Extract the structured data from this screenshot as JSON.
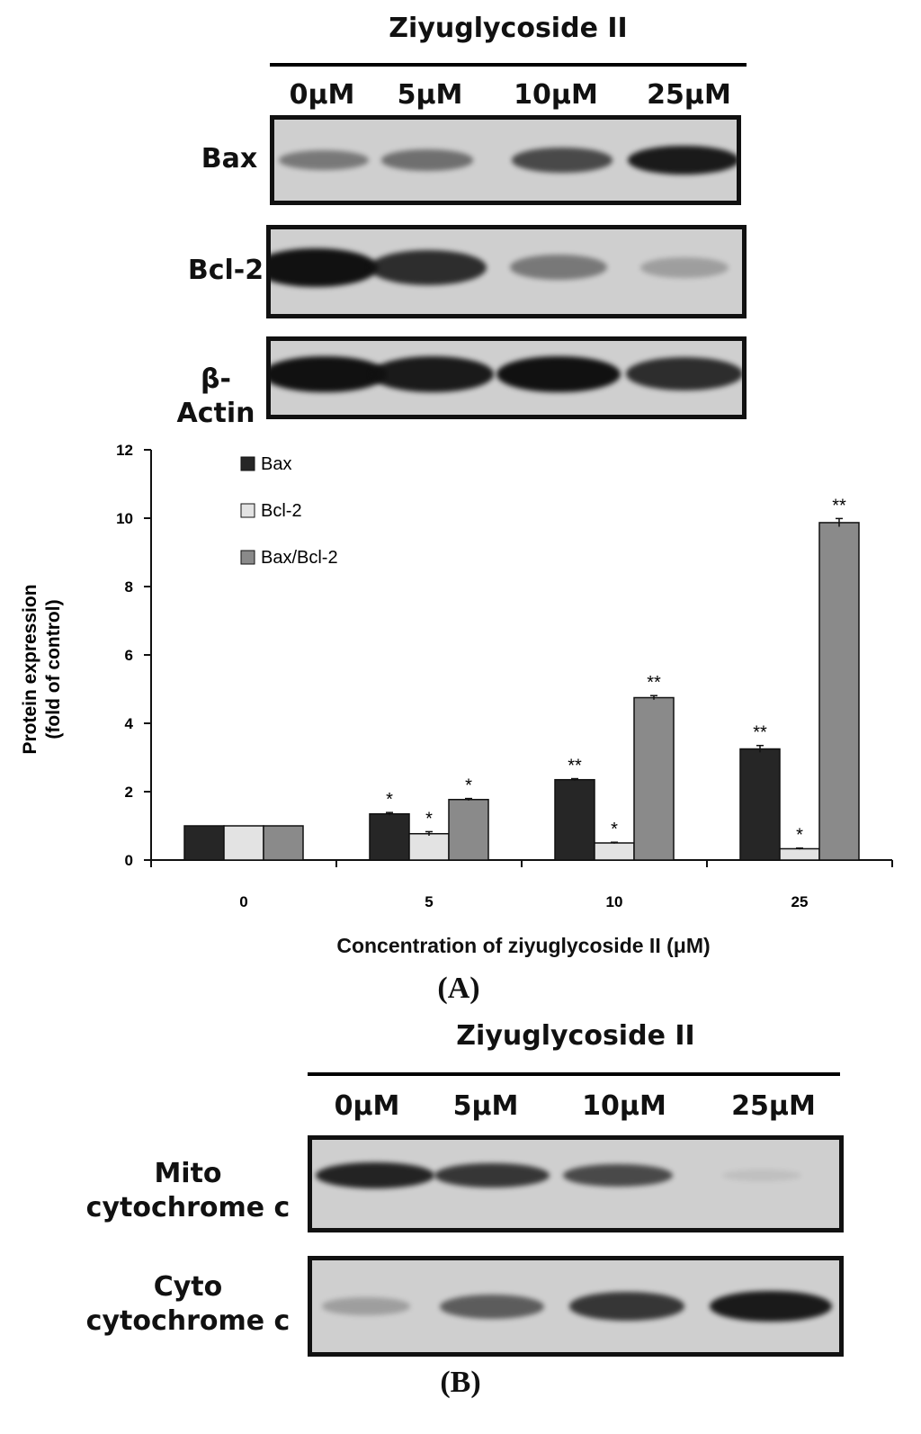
{
  "panel_a": {
    "label": "(A)",
    "treatment_title": "Ziyuglycoside II",
    "lanes": [
      "0μM",
      "5μM",
      "10μM",
      "25μM"
    ],
    "blots": [
      {
        "name": "Bax",
        "band_intensity": [
          0.45,
          0.5,
          0.7,
          0.95
        ]
      },
      {
        "name": "Bcl-2",
        "band_intensity": [
          1.0,
          0.85,
          0.45,
          0.25
        ]
      },
      {
        "name": "β-Actin",
        "band_intensity": [
          1.0,
          0.95,
          1.0,
          0.85
        ]
      }
    ]
  },
  "panel_b": {
    "label": "(B)",
    "treatment_title": "Ziyuglycoside II",
    "lanes": [
      "0μM",
      "5μM",
      "10μM",
      "25μM"
    ],
    "blots": [
      {
        "name_line1": "Mito",
        "name_line2": "cytochrome c",
        "band_intensity": [
          0.9,
          0.8,
          0.7,
          0.08
        ]
      },
      {
        "name_line1": "Cyto",
        "name_line2": "cytochrome c",
        "band_intensity": [
          0.25,
          0.6,
          0.8,
          0.95
        ]
      }
    ]
  },
  "chart_data": {
    "type": "bar",
    "title": "",
    "xlabel": "Concentration of ziyuglycoside II (μM)",
    "ylabel_line1": "Protein expression",
    "ylabel_line2": "(fold of control)",
    "ylim": [
      0,
      12
    ],
    "yticks": [
      "0",
      "2",
      "4",
      "6",
      "8",
      "10",
      "12"
    ],
    "categories": [
      "0",
      "5",
      "10",
      "25"
    ],
    "legend_position": "top-left",
    "grid": false,
    "series": [
      {
        "name": "Bax",
        "color": "#262626",
        "values": [
          1.0,
          1.35,
          2.35,
          3.25
        ],
        "errors": [
          0,
          0.04,
          0.03,
          0.1
        ],
        "annotations": [
          "",
          "*",
          "**",
          "**"
        ]
      },
      {
        "name": "Bcl-2",
        "color": "#e3e3e3",
        "values": [
          1.0,
          0.77,
          0.5,
          0.33
        ],
        "errors": [
          0,
          0.06,
          0.02,
          0.02
        ],
        "annotations": [
          "",
          "*",
          "*",
          "*"
        ]
      },
      {
        "name": "Bax/Bcl-2",
        "color": "#8a8a8a",
        "values": [
          1.0,
          1.77,
          4.75,
          9.87
        ],
        "errors": [
          0,
          0.03,
          0.06,
          0.12
        ],
        "annotations": [
          "",
          "*",
          "**",
          "**"
        ]
      }
    ]
  }
}
